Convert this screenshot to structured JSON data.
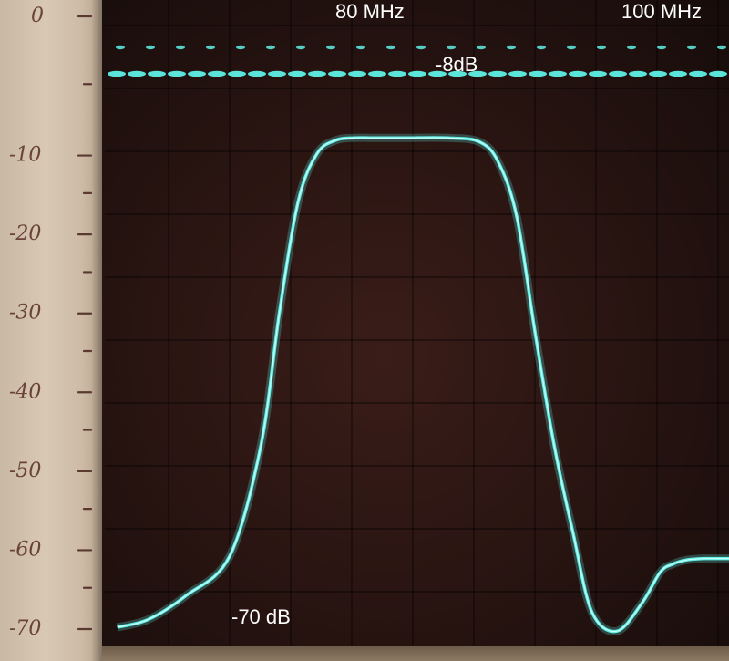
{
  "chart_data": {
    "type": "line",
    "annotations": {
      "freq_80": "80 MHz",
      "freq_100": "100 MHz",
      "peak": "-8dB",
      "floor": "-70 dB"
    },
    "y_scale_labels": [
      "0",
      "-10",
      "-20",
      "-30",
      "-40",
      "-50",
      "-60",
      "-70"
    ],
    "y_scale_values": [
      0,
      -10,
      -20,
      -30,
      -40,
      -50,
      -60,
      -70
    ],
    "ylim": [
      -70,
      0
    ],
    "grid": true,
    "trace_color": "#5ff0e6",
    "series": [
      {
        "values_note": "",
        "x": [
          0.02,
          0.07,
          0.13,
          0.2,
          0.25,
          0.28,
          0.31,
          0.34,
          0.37,
          0.4,
          0.43,
          0.48,
          0.55,
          0.6,
          0.63,
          0.66,
          0.69,
          0.72,
          0.75,
          0.78,
          0.82,
          0.86,
          0.89,
          0.91,
          0.93,
          0.96,
          1.0
        ],
        "y": [
          -70,
          -69,
          -66,
          -61,
          -47,
          -30,
          -16,
          -10,
          -8.3,
          -8,
          -8,
          -8,
          -8,
          -8.5,
          -11,
          -18,
          -33,
          -47,
          -58,
          -68,
          -70.5,
          -67,
          -63,
          -62,
          -61.5,
          -61.3,
          -61.3
        ]
      }
    ],
    "reference_line_db": -8
  }
}
